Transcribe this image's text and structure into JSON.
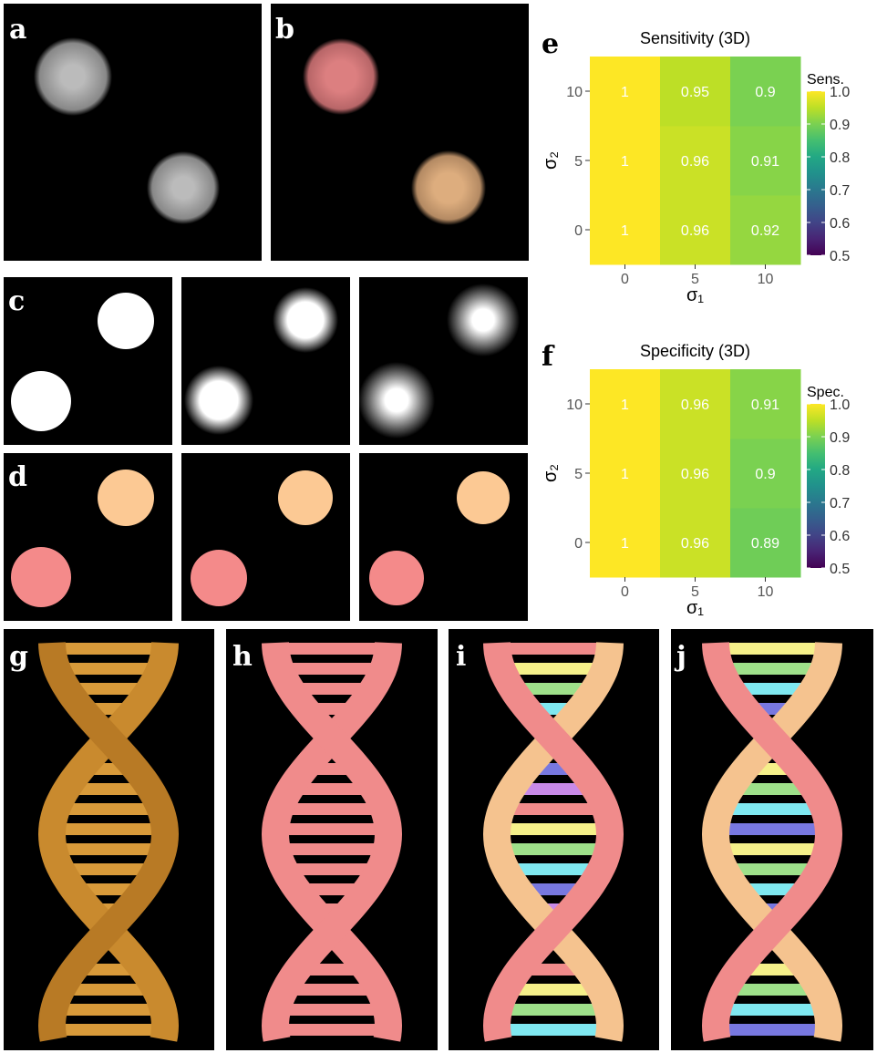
{
  "panel_labels": [
    "a",
    "b",
    "c",
    "d",
    "g",
    "h",
    "i",
    "j"
  ],
  "chart_data": [
    {
      "type": "heatmap",
      "panel": "e",
      "title": "Sensitivity (3D)",
      "xlabel": "σ₁",
      "ylabel": "σ₂",
      "x": [
        0,
        5,
        10
      ],
      "y": [
        0,
        5,
        10
      ],
      "values": [
        [
          1,
          0.96,
          0.92
        ],
        [
          1,
          0.96,
          0.91
        ],
        [
          1,
          0.95,
          0.9
        ]
      ],
      "colorbar_label": "Sens.",
      "clim": [
        0.5,
        1
      ],
      "cticks": [
        0.5,
        0.6,
        0.7,
        0.8,
        0.9,
        {
          "value": 1,
          "label": "1.0"
        }
      ]
    },
    {
      "type": "heatmap",
      "panel": "f",
      "title": "Specificity (3D)",
      "xlabel": "σ₁",
      "ylabel": "σ₂",
      "x": [
        0,
        5,
        10
      ],
      "y": [
        0,
        5,
        10
      ],
      "values": [
        [
          1,
          0.96,
          0.89
        ],
        [
          1,
          0.96,
          0.9
        ],
        [
          1,
          0.96,
          0.91
        ]
      ],
      "colorbar_label": "Spec.",
      "clim": [
        0.5,
        1
      ],
      "cticks": [
        0.5,
        0.6,
        0.7,
        0.8,
        0.9,
        {
          "value": 1,
          "label": "1.0"
        }
      ]
    }
  ]
}
